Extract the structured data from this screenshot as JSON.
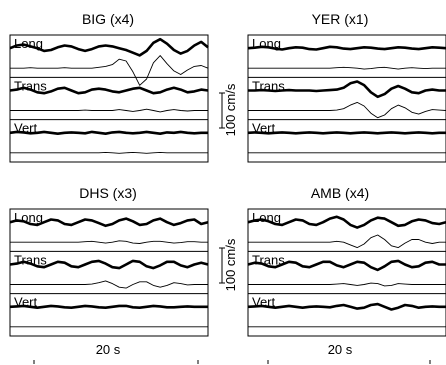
{
  "chart_data": {
    "type": "line",
    "panels": [
      {
        "title": "BIG (x4)",
        "channels": [
          {
            "label": "Long",
            "observed": [
              0,
              0.3,
              0.4,
              0.2,
              0,
              -0.3,
              -0.2,
              0.1,
              0.3,
              0.2,
              -0.1,
              -0.3,
              -0.1,
              0.2,
              0.3,
              0.2,
              0,
              -0.2,
              -0.5,
              -0.8,
              -0.3,
              0.6,
              1.0,
              0.5,
              -0.2,
              -0.6,
              -0.3,
              0.3,
              0.7,
              0.1
            ],
            "synthetic": [
              0,
              0,
              0,
              0.05,
              0,
              0,
              0,
              0,
              0.05,
              0,
              0,
              0,
              0,
              0.1,
              0.2,
              0.4,
              1.0,
              0.8,
              -0.4,
              -1.9,
              -1.2,
              0.6,
              1.4,
              0.5,
              -0.3,
              -0.7,
              -0.2,
              0.2,
              0.3,
              0
            ]
          },
          {
            "label": "Trans",
            "observed": [
              0,
              0.1,
              0.3,
              0.1,
              -0.2,
              -0.3,
              -0.1,
              0.2,
              0.3,
              0,
              -0.3,
              -0.2,
              0.1,
              0.2,
              0.1,
              -0.1,
              -0.2,
              0,
              0.2,
              0.3,
              0,
              -0.3,
              -0.2,
              0.1,
              0.3,
              0.1,
              -0.2,
              -0.1,
              0.1,
              0
            ],
            "synthetic": [
              0,
              0,
              0,
              0,
              0,
              0,
              0,
              0,
              0,
              0,
              0,
              0.05,
              0,
              0,
              0,
              0,
              0.1,
              0,
              -0.1,
              0,
              0.15,
              0,
              -0.15,
              0,
              0.1,
              0,
              -0.05,
              0,
              0,
              0
            ]
          },
          {
            "label": "Vert",
            "observed": [
              0,
              0.1,
              0.05,
              -0.05,
              0,
              0.1,
              0,
              -0.1,
              0,
              0.05,
              0,
              -0.05,
              0.1,
              0,
              -0.1,
              0.05,
              0.1,
              0,
              -0.05,
              0,
              0.1,
              0,
              -0.1,
              0.05,
              0,
              0.1,
              0,
              -0.05,
              0,
              0
            ],
            "synthetic": [
              0,
              0,
              0,
              0,
              0,
              0,
              0,
              0,
              0,
              0,
              0,
              0,
              0,
              0,
              0.05,
              0,
              -0.05,
              0,
              0.05,
              0,
              -0.05,
              0,
              0.05,
              0,
              0,
              0,
              0,
              0,
              0,
              0
            ]
          }
        ]
      },
      {
        "title": "YER (x1)",
        "channels": [
          {
            "label": "Long",
            "observed": [
              0,
              0.05,
              0.15,
              0.1,
              -0.05,
              -0.15,
              0,
              0.1,
              0.05,
              -0.1,
              -0.15,
              0,
              0.15,
              0.1,
              -0.05,
              -0.1,
              0,
              0.1,
              0.05,
              -0.05,
              -0.1,
              0,
              0.1,
              0.05,
              -0.05,
              -0.1,
              0,
              0.1,
              0.05,
              0
            ],
            "synthetic": [
              0,
              0,
              0,
              0,
              0,
              0,
              0,
              0,
              0,
              0,
              0,
              0,
              0,
              0.05,
              0.1,
              0.05,
              0,
              -0.1,
              -0.05,
              0.05,
              0.1,
              0,
              -0.1,
              0,
              0.05,
              0,
              -0.05,
              0,
              0,
              0
            ]
          },
          {
            "label": "Trans",
            "observed": [
              0,
              0,
              0.05,
              0,
              -0.05,
              0,
              0.05,
              0,
              0,
              0,
              -0.05,
              0,
              0.05,
              0.1,
              0.3,
              0.8,
              1.0,
              0.6,
              -0.2,
              -0.7,
              -0.4,
              0.2,
              0.5,
              0.2,
              -0.2,
              -0.3,
              0,
              0.1,
              0,
              0
            ],
            "synthetic": [
              0,
              0,
              0,
              0,
              0,
              0,
              0,
              0,
              0,
              0,
              0,
              0,
              0,
              0.05,
              0.2,
              0.6,
              0.9,
              0.5,
              -0.3,
              -0.8,
              -0.5,
              0.2,
              0.6,
              0.3,
              -0.2,
              -0.4,
              -0.1,
              0.1,
              0.05,
              0
            ]
          },
          {
            "label": "Vert",
            "observed": [
              0,
              0.05,
              0,
              -0.05,
              0,
              0.05,
              0,
              -0.05,
              0,
              0.05,
              0,
              -0.05,
              0,
              0.05,
              0,
              -0.05,
              0,
              0.05,
              0,
              -0.05,
              0,
              0.05,
              0,
              -0.05,
              0,
              0.05,
              0,
              -0.05,
              0,
              0
            ],
            "synthetic": [
              0,
              0,
              0,
              0,
              0,
              0,
              0,
              0,
              0,
              0,
              0,
              0,
              0,
              0,
              0,
              0,
              0,
              0,
              0,
              0,
              0,
              0,
              0,
              0,
              0,
              0,
              0,
              0,
              0,
              0
            ]
          }
        ]
      },
      {
        "title": "DHS (x3)",
        "channels": [
          {
            "label": "Long",
            "observed": [
              0,
              0.2,
              0.1,
              -0.2,
              -0.3,
              0,
              0.3,
              0.2,
              -0.2,
              -0.3,
              0,
              0.3,
              0.2,
              -0.1,
              -0.4,
              -0.2,
              0.2,
              0.4,
              0.1,
              -0.3,
              -0.2,
              0.2,
              0.4,
              0,
              -0.3,
              -0.1,
              0.2,
              0.3,
              -0.2,
              0
            ],
            "synthetic": [
              0,
              0,
              0,
              0,
              0,
              0,
              0,
              0,
              0,
              0,
              0,
              0.05,
              0.1,
              0,
              -0.1,
              0,
              0.15,
              0.1,
              -0.1,
              -0.15,
              0,
              0.1,
              0.1,
              0,
              -0.1,
              -0.05,
              0.05,
              0.05,
              0,
              0
            ]
          },
          {
            "label": "Trans",
            "observed": [
              0,
              0.1,
              0.3,
              0.1,
              -0.2,
              -0.3,
              0,
              0.3,
              0.2,
              -0.2,
              -0.3,
              0,
              0.3,
              0.4,
              0.1,
              -0.3,
              -0.4,
              0,
              0.4,
              0.3,
              -0.2,
              -0.4,
              -0.1,
              0.3,
              0.3,
              -0.1,
              -0.3,
              0,
              0.2,
              0
            ],
            "synthetic": [
              0,
              0,
              0,
              0,
              0,
              0,
              0,
              0,
              0,
              0,
              0,
              0,
              0.05,
              0.2,
              0.4,
              0.1,
              -0.3,
              -0.4,
              0,
              0.3,
              0.3,
              -0.1,
              -0.3,
              -0.1,
              0.2,
              0.1,
              -0.05,
              0,
              0,
              0
            ]
          },
          {
            "label": "Vert",
            "observed": [
              0,
              0.05,
              0.1,
              0,
              -0.1,
              0,
              0.1,
              0.05,
              -0.05,
              -0.1,
              0,
              0.1,
              0.05,
              -0.05,
              -0.1,
              0,
              0.1,
              0.1,
              -0.05,
              -0.1,
              0,
              0.1,
              0.05,
              -0.05,
              -0.05,
              0,
              0.05,
              0,
              0,
              0
            ],
            "synthetic": [
              0,
              0,
              0,
              0,
              0,
              0,
              0,
              0,
              0,
              0,
              0,
              0,
              0,
              0,
              0,
              0,
              0,
              0,
              0,
              0,
              0,
              0,
              0,
              0,
              0,
              0,
              0,
              0,
              0,
              0
            ]
          }
        ]
      },
      {
        "title": "AMB (x4)",
        "channels": [
          {
            "label": "Long",
            "observed": [
              0,
              0.2,
              0.3,
              0.1,
              -0.2,
              -0.3,
              0,
              0.3,
              0.2,
              -0.2,
              -0.3,
              0,
              0.4,
              0.6,
              0.3,
              -0.3,
              -0.6,
              -0.3,
              0.2,
              0.5,
              0.4,
              0,
              -0.4,
              -0.3,
              0.1,
              0.3,
              0.2,
              -0.1,
              -0.2,
              0
            ],
            "synthetic": [
              0,
              0,
              0,
              0,
              0,
              0,
              0,
              0,
              0,
              0,
              0,
              0,
              0,
              0.1,
              0,
              -0.3,
              -0.6,
              -0.2,
              0.5,
              0.8,
              0.3,
              -0.4,
              -0.6,
              -0.1,
              0.3,
              0.3,
              0,
              -0.15,
              0,
              0
            ]
          },
          {
            "label": "Trans",
            "observed": [
              0,
              0.2,
              0.1,
              -0.2,
              -0.3,
              0,
              0.3,
              0.2,
              -0.2,
              -0.3,
              0,
              0.3,
              0.3,
              -0.1,
              -0.3,
              0,
              0.3,
              0.2,
              -0.3,
              -0.6,
              -0.2,
              0.3,
              0.4,
              0,
              -0.3,
              -0.2,
              0.2,
              0.3,
              0,
              0
            ],
            "synthetic": [
              0,
              0,
              0,
              0,
              0,
              0,
              0,
              0,
              0,
              0,
              0,
              0,
              0,
              0.05,
              0.1,
              0,
              -0.1,
              0,
              0.15,
              0.1,
              -0.15,
              -0.1,
              0.1,
              0.05,
              0,
              0,
              0,
              0,
              0,
              0
            ]
          },
          {
            "label": "Vert",
            "observed": [
              0,
              0.05,
              0.1,
              0,
              -0.1,
              0,
              0.1,
              0,
              -0.1,
              0,
              0.05,
              0,
              -0.05,
              0.1,
              0.2,
              0,
              -0.2,
              -0.1,
              0.2,
              0.3,
              0,
              -0.3,
              -0.1,
              0.2,
              0.1,
              -0.1,
              0,
              0.05,
              0,
              0
            ],
            "synthetic": [
              0,
              0,
              0,
              0,
              0,
              0,
              0,
              0,
              0,
              0,
              0,
              0,
              0,
              0,
              0,
              0,
              0,
              0,
              0,
              0,
              0,
              0,
              0,
              0,
              0,
              0,
              0,
              0,
              0,
              0
            ]
          }
        ]
      }
    ],
    "scale_label": "100 cm/s",
    "time_label": "20 s",
    "grid": false,
    "colors": {
      "line": "#000000",
      "background": "#ffffff"
    }
  }
}
